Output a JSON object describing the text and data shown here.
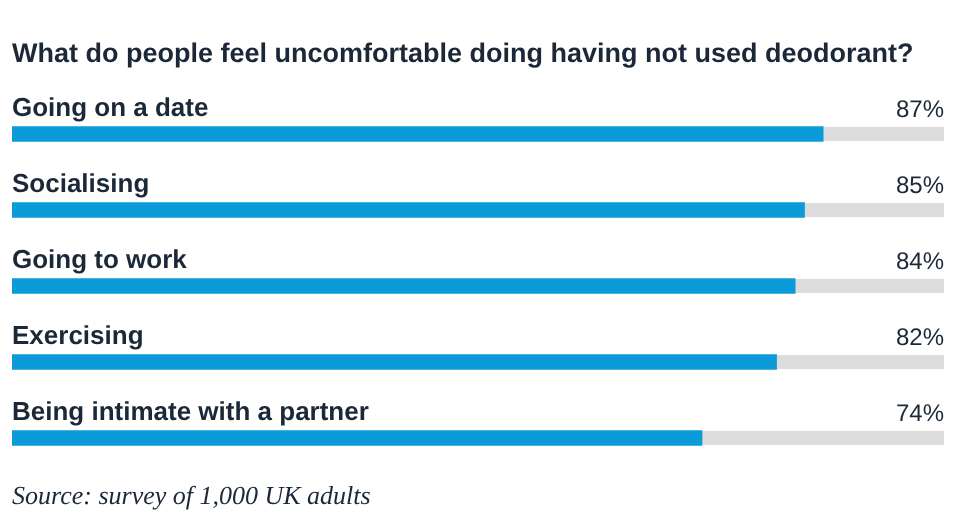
{
  "chart_data": {
    "type": "bar",
    "orientation": "horizontal",
    "title": "What do people feel uncomfortable doing having not used deodorant?",
    "categories": [
      "Going on a date",
      "Socialising",
      "Going to work",
      "Exercising",
      "Being intimate with a partner"
    ],
    "values": [
      87,
      85,
      84,
      82,
      74
    ],
    "color": "#0a9bd8",
    "value_labels": [
      "87%",
      "85%",
      "84%",
      "82%",
      "74%"
    ],
    "xlim": [
      0,
      100
    ],
    "tick_labels": false,
    "annotations": [
      "Source: survey of 1,000 UK adults"
    ]
  }
}
